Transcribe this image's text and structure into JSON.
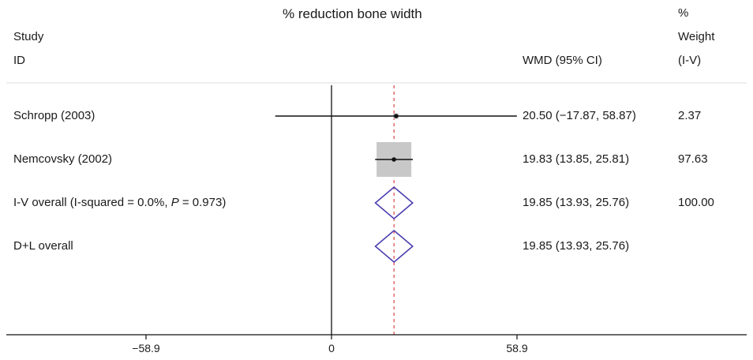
{
  "chart_data": {
    "type": "forest",
    "title": "% reduction bone width",
    "columns": {
      "study_line1": "Study",
      "study_line2": "ID",
      "effect": "WMD (95% CI)",
      "weight_line1": "%",
      "weight_line2": "Weight",
      "weight_line3": "(I-V)"
    },
    "studies": [
      {
        "label": "Schropp (2003)",
        "estimate": 20.5,
        "lower": -17.87,
        "upper": 58.87,
        "ci_text": "20.50 (−17.87, 58.87)",
        "weight": 2.37,
        "weight_text": "2.37"
      },
      {
        "label": "Nemcovsky (2002)",
        "estimate": 19.83,
        "lower": 13.85,
        "upper": 25.81,
        "ci_text": "19.83 (13.85, 25.81)",
        "weight": 97.63,
        "weight_text": "97.63"
      }
    ],
    "overall": [
      {
        "label_pre": "I-V overall  (I-squared = 0.0%, ",
        "label_p": "P",
        "label_post": " = 0.973)",
        "estimate": 19.85,
        "lower": 13.93,
        "upper": 25.76,
        "ci_text": "19.85 (13.93, 25.76)",
        "weight_text": "100.00"
      },
      {
        "label_pre": "D+L overall",
        "label_p": "",
        "label_post": "",
        "estimate": 19.85,
        "lower": 13.93,
        "upper": 25.76,
        "ci_text": "19.85 (13.93, 25.76)",
        "weight_text": ""
      }
    ],
    "x_ticks": [
      {
        "value": -58.9,
        "label": "−58.9"
      },
      {
        "value": 0,
        "label": "0"
      },
      {
        "value": 58.9,
        "label": "58.9"
      }
    ],
    "reference_line": 0,
    "pooled_line": 19.85,
    "colors": {
      "ci_line": "#111111",
      "weight_box": "#c8c8c8",
      "diamond": "#4a3fb0",
      "pooled_line": "#e06060",
      "axis": "#111111",
      "header_rule": "#dddddd"
    }
  }
}
